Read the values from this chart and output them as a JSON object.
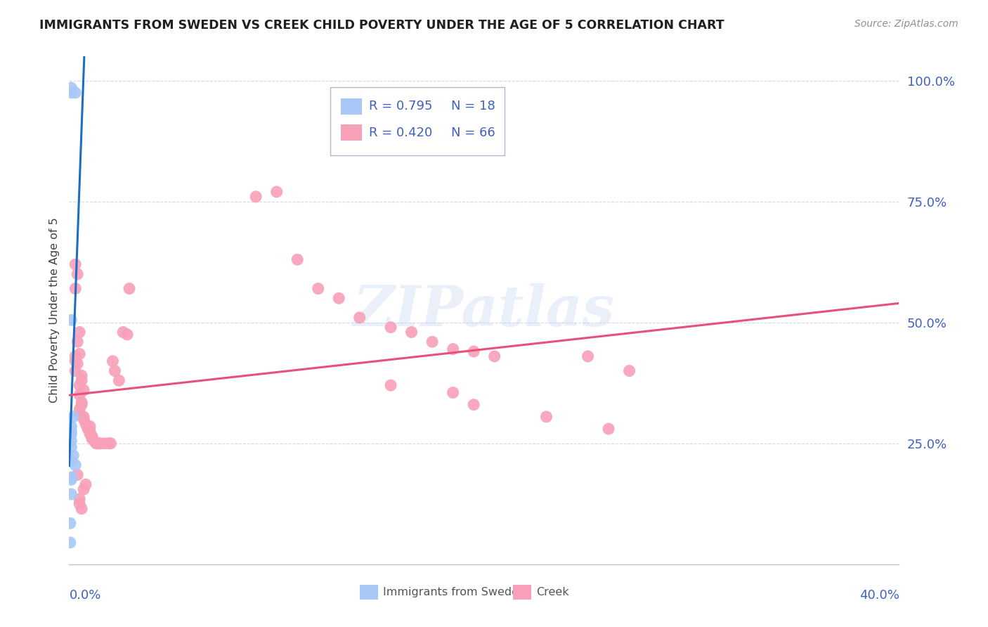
{
  "title": "IMMIGRANTS FROM SWEDEN VS CREEK CHILD POVERTY UNDER THE AGE OF 5 CORRELATION CHART",
  "source": "Source: ZipAtlas.com",
  "ylabel": "Child Poverty Under the Age of 5",
  "ytick_labels": [
    "100.0%",
    "75.0%",
    "50.0%",
    "25.0%"
  ],
  "ytick_values": [
    1.0,
    0.75,
    0.5,
    0.25
  ],
  "xtick_labels": [
    "0.0%",
    "40.0%"
  ],
  "legend_sweden_r": "R = 0.795",
  "legend_sweden_n": "N = 18",
  "legend_creek_r": "R = 0.420",
  "legend_creek_n": "N = 66",
  "sweden_color": "#a8c8f8",
  "sweden_line_color": "#1a6fc4",
  "creek_color": "#f8a0b8",
  "creek_line_color": "#e8507a",
  "background_color": "#ffffff",
  "grid_color": "#d8d8e8",
  "title_color": "#202020",
  "axis_color": "#c0c0d0",
  "label_color": "#4060c0",
  "watermark": "ZIPatlas",
  "x_max": 0.4,
  "y_max": 1.05,
  "sweden_points_x": [
    0.001,
    0.001,
    0.003,
    0.001,
    0.002,
    0.001,
    0.001,
    0.001,
    0.001,
    0.001,
    0.002,
    0.001,
    0.003,
    0.001,
    0.001,
    0.0005,
    0.0005,
    0.001
  ],
  "sweden_points_y": [
    0.985,
    0.975,
    0.975,
    0.505,
    0.305,
    0.285,
    0.275,
    0.268,
    0.255,
    0.242,
    0.225,
    0.215,
    0.205,
    0.175,
    0.145,
    0.085,
    0.045,
    0.18
  ],
  "creek_points_x": [
    0.003,
    0.004,
    0.003,
    0.005,
    0.004,
    0.003,
    0.005,
    0.003,
    0.004,
    0.003,
    0.006,
    0.006,
    0.005,
    0.007,
    0.005,
    0.006,
    0.006,
    0.005,
    0.005,
    0.007,
    0.007,
    0.008,
    0.01,
    0.009,
    0.01,
    0.01,
    0.011,
    0.011,
    0.012,
    0.013,
    0.014,
    0.015,
    0.017,
    0.019,
    0.02,
    0.021,
    0.022,
    0.024,
    0.026,
    0.028,
    0.029,
    0.09,
    0.1,
    0.11,
    0.12,
    0.13,
    0.14,
    0.155,
    0.165,
    0.175,
    0.185,
    0.195,
    0.205,
    0.25,
    0.27,
    0.155,
    0.185,
    0.195,
    0.23,
    0.26,
    0.008,
    0.007,
    0.005,
    0.005,
    0.006,
    0.004
  ],
  "creek_points_y": [
    0.62,
    0.6,
    0.57,
    0.48,
    0.46,
    0.43,
    0.435,
    0.42,
    0.415,
    0.4,
    0.39,
    0.38,
    0.37,
    0.36,
    0.35,
    0.335,
    0.33,
    0.32,
    0.31,
    0.305,
    0.3,
    0.29,
    0.285,
    0.28,
    0.275,
    0.27,
    0.265,
    0.26,
    0.255,
    0.25,
    0.25,
    0.25,
    0.25,
    0.25,
    0.25,
    0.42,
    0.4,
    0.38,
    0.48,
    0.475,
    0.57,
    0.76,
    0.77,
    0.63,
    0.57,
    0.55,
    0.51,
    0.49,
    0.48,
    0.46,
    0.445,
    0.44,
    0.43,
    0.43,
    0.4,
    0.37,
    0.355,
    0.33,
    0.305,
    0.28,
    0.165,
    0.155,
    0.135,
    0.125,
    0.115,
    0.185
  ]
}
